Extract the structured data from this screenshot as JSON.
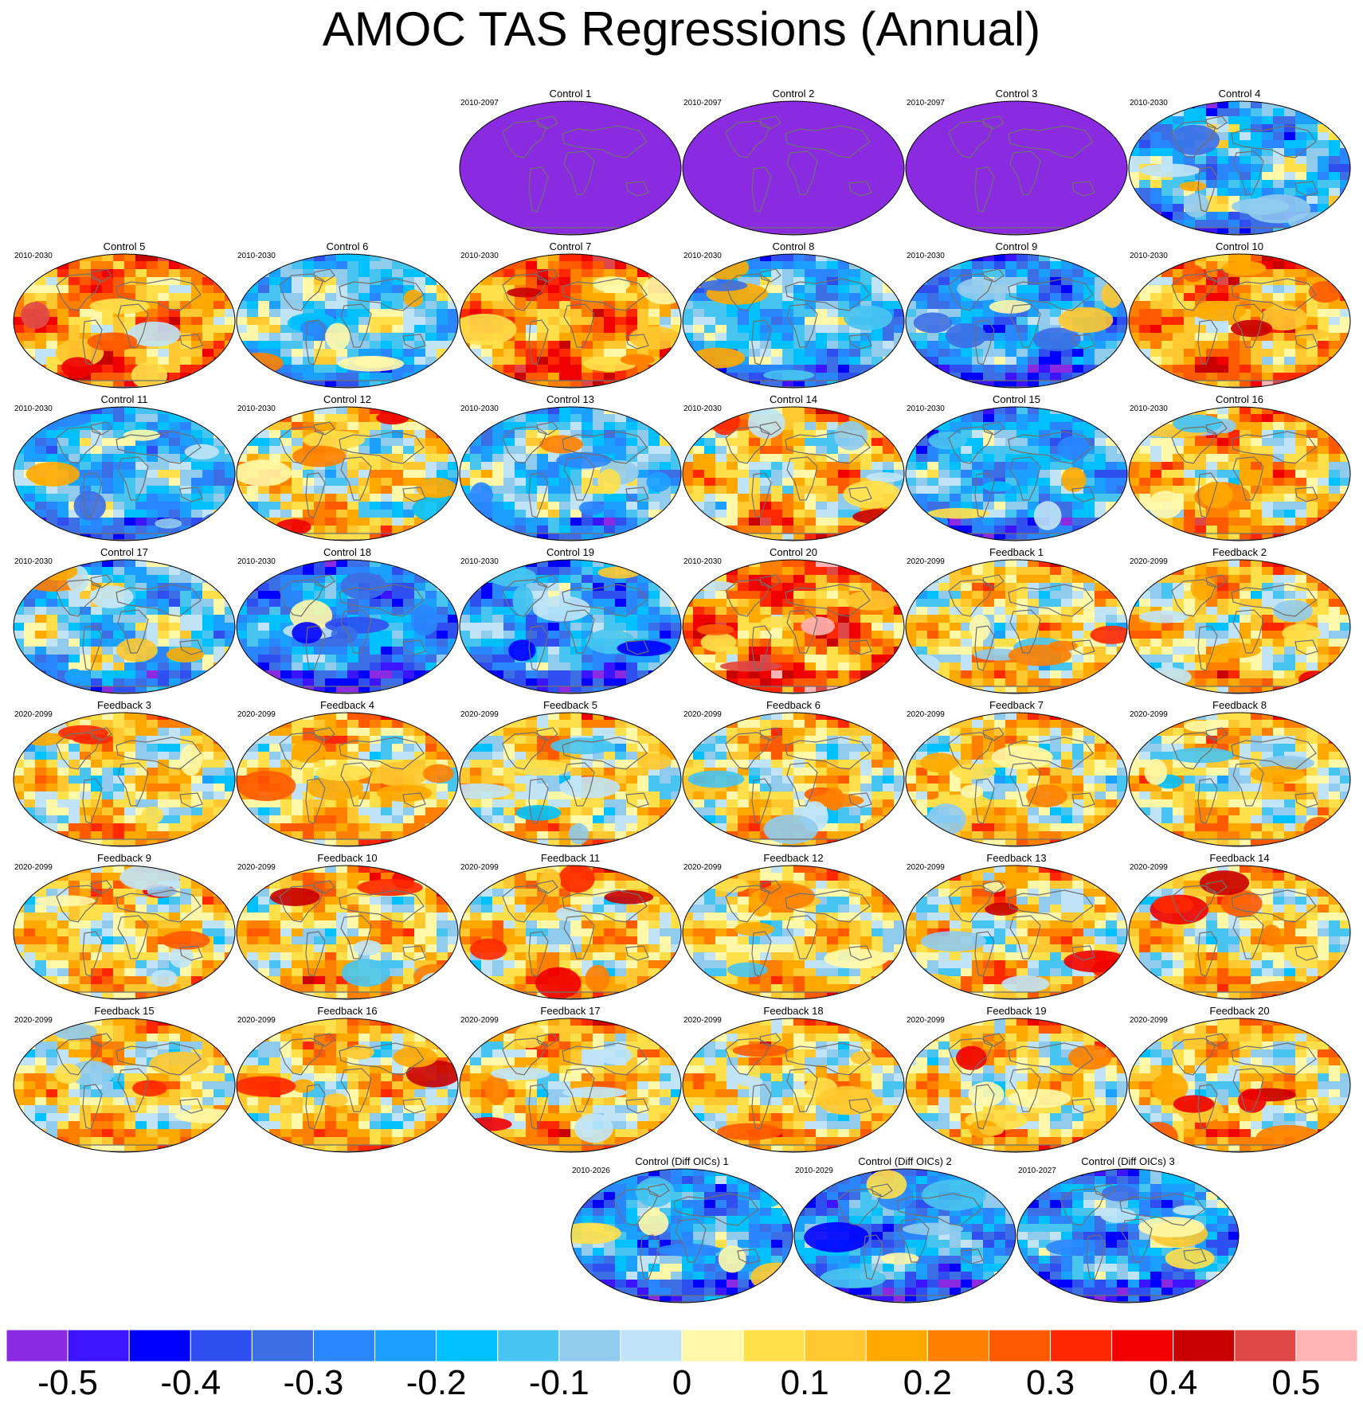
{
  "title": "AMOC TAS Regressions (Annual)",
  "colorbar": {
    "colors": [
      "#8a2be2",
      "#3c14ff",
      "#0000ff",
      "#2f4ff0",
      "#3c6ee6",
      "#2a86ff",
      "#1ca0ff",
      "#00c0ff",
      "#48c4f0",
      "#90cbee",
      "#c0e4f6",
      "#fff8a8",
      "#ffe04a",
      "#ffc830",
      "#ffa800",
      "#ff8000",
      "#ff5a00",
      "#ff2800",
      "#f00000",
      "#c80000",
      "#e04848",
      "#ffb4b4"
    ],
    "tick_labels": [
      "-0.5",
      "-0.4",
      "-0.3",
      "-0.2",
      "-0.1",
      "0",
      "0.1",
      "0.2",
      "0.3",
      "0.4",
      "0.5"
    ]
  },
  "panels": [
    {
      "title": "Control 1",
      "years": "2010-2097",
      "mean": -0.6,
      "amp": 0.0
    },
    {
      "title": "Control 2",
      "years": "2010-2097",
      "mean": -0.6,
      "amp": 0.0
    },
    {
      "title": "Control 3",
      "years": "2010-2097",
      "mean": -0.6,
      "amp": 0.0
    },
    {
      "title": "Control 4",
      "years": "2010-2030",
      "mean": -0.15,
      "amp": 0.25
    },
    {
      "title": "Control 5",
      "years": "2010-2030",
      "mean": 0.18,
      "amp": 0.22
    },
    {
      "title": "Control 6",
      "years": "2010-2030",
      "mean": -0.1,
      "amp": 0.2
    },
    {
      "title": "Control 7",
      "years": "2010-2030",
      "mean": 0.2,
      "amp": 0.22
    },
    {
      "title": "Control 8",
      "years": "2010-2030",
      "mean": -0.15,
      "amp": 0.2
    },
    {
      "title": "Control 9",
      "years": "2010-2030",
      "mean": -0.2,
      "amp": 0.22
    },
    {
      "title": "Control 10",
      "years": "2010-2030",
      "mean": 0.16,
      "amp": 0.22
    },
    {
      "title": "Control 11",
      "years": "2010-2030",
      "mean": -0.15,
      "amp": 0.2
    },
    {
      "title": "Control 12",
      "years": "2010-2030",
      "mean": 0.05,
      "amp": 0.25
    },
    {
      "title": "Control 13",
      "years": "2010-2030",
      "mean": -0.1,
      "amp": 0.22
    },
    {
      "title": "Control 14",
      "years": "2010-2030",
      "mean": 0.08,
      "amp": 0.24
    },
    {
      "title": "Control 15",
      "years": "2010-2030",
      "mean": -0.18,
      "amp": 0.2
    },
    {
      "title": "Control 16",
      "years": "2010-2030",
      "mean": 0.1,
      "amp": 0.24
    },
    {
      "title": "Control 17",
      "years": "2010-2030",
      "mean": -0.1,
      "amp": 0.25
    },
    {
      "title": "Control 18",
      "years": "2010-2030",
      "mean": -0.25,
      "amp": 0.2
    },
    {
      "title": "Control 19",
      "years": "2010-2030",
      "mean": -0.2,
      "amp": 0.22
    },
    {
      "title": "Control 20",
      "years": "2010-2030",
      "mean": 0.22,
      "amp": 0.24
    },
    {
      "title": "Feedback 1",
      "years": "2020-2099",
      "mean": 0.05,
      "amp": 0.22
    },
    {
      "title": "Feedback 2",
      "years": "2020-2099",
      "mean": 0.07,
      "amp": 0.22
    },
    {
      "title": "Feedback 3",
      "years": "2020-2099",
      "mean": 0.04,
      "amp": 0.22
    },
    {
      "title": "Feedback 4",
      "years": "2020-2099",
      "mean": 0.08,
      "amp": 0.22
    },
    {
      "title": "Feedback 5",
      "years": "2020-2099",
      "mean": 0.05,
      "amp": 0.22
    },
    {
      "title": "Feedback 6",
      "years": "2020-2099",
      "mean": 0.05,
      "amp": 0.22
    },
    {
      "title": "Feedback 7",
      "years": "2020-2099",
      "mean": 0.06,
      "amp": 0.22
    },
    {
      "title": "Feedback 8",
      "years": "2020-2099",
      "mean": 0.05,
      "amp": 0.22
    },
    {
      "title": "Feedback 9",
      "years": "2020-2099",
      "mean": 0.07,
      "amp": 0.22
    },
    {
      "title": "Feedback 10",
      "years": "2020-2099",
      "mean": 0.08,
      "amp": 0.22
    },
    {
      "title": "Feedback 11",
      "years": "2020-2099",
      "mean": 0.08,
      "amp": 0.22
    },
    {
      "title": "Feedback 12",
      "years": "2020-2099",
      "mean": 0.06,
      "amp": 0.22
    },
    {
      "title": "Feedback 13",
      "years": "2020-2099",
      "mean": 0.07,
      "amp": 0.22
    },
    {
      "title": "Feedback 14",
      "years": "2020-2099",
      "mean": 0.06,
      "amp": 0.22
    },
    {
      "title": "Feedback 15",
      "years": "2020-2099",
      "mean": 0.06,
      "amp": 0.22
    },
    {
      "title": "Feedback 16",
      "years": "2020-2099",
      "mean": 0.07,
      "amp": 0.22
    },
    {
      "title": "Feedback 17",
      "years": "2020-2099",
      "mean": 0.08,
      "amp": 0.22
    },
    {
      "title": "Feedback 18",
      "years": "2020-2099",
      "mean": 0.06,
      "amp": 0.22
    },
    {
      "title": "Feedback 19",
      "years": "2020-2099",
      "mean": 0.05,
      "amp": 0.22
    },
    {
      "title": "Feedback 20",
      "years": "2020-2099",
      "mean": 0.07,
      "amp": 0.22
    },
    {
      "title": "Control (Diff OICs) 1",
      "years": "2010-2026",
      "mean": -0.2,
      "amp": 0.22
    },
    {
      "title": "Control (Diff OICs) 2",
      "years": "2010-2029",
      "mean": -0.22,
      "amp": 0.22
    },
    {
      "title": "Control (Diff OICs) 3",
      "years": "2010-2027",
      "mean": -0.2,
      "amp": 0.22
    }
  ]
}
